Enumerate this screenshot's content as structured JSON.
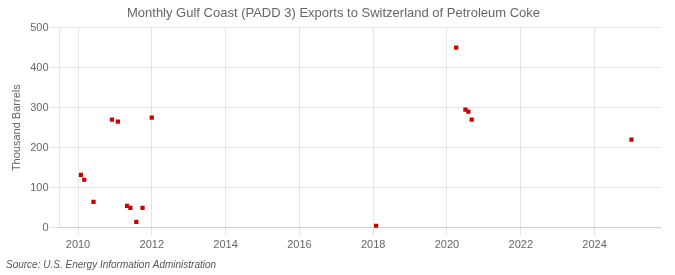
{
  "chart_data": {
    "type": "scatter",
    "title": "Monthly Gulf Coast (PADD 3) Exports to Switzerland of Petroleum Coke",
    "y_label": "Thousand Barrels",
    "annotations": [
      "Source: U.S. Energy Information Administration"
    ],
    "x": [
      2010.08,
      2010.17,
      2010.42,
      2010.92,
      2011.08,
      2011.33,
      2011.42,
      2011.58,
      2011.75,
      2012.0,
      2018.08,
      2020.25,
      2020.5,
      2020.58,
      2020.67,
      2025.0
    ],
    "values": [
      132,
      120,
      65,
      270,
      265,
      55,
      50,
      15,
      50,
      275,
      5,
      450,
      295,
      290,
      270,
      220
    ],
    "color": "#cc0000",
    "marker": "square",
    "xlim": [
      2009.5,
      2025.8
    ],
    "ylim": [
      0,
      500
    ],
    "xticks": [
      2010,
      2012,
      2014,
      2016,
      2018,
      2020,
      2022,
      2024
    ],
    "yticks": [
      0,
      100,
      200,
      300,
      400,
      500
    ],
    "grid": true
  }
}
